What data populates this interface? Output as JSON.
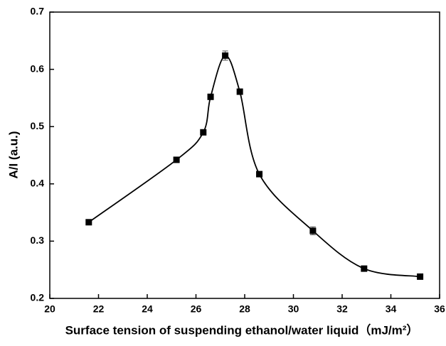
{
  "chart_data": {
    "type": "line",
    "xlabel": "Surface tension of suspending ethanol/water liquid（mJ/m²）",
    "ylabel": "A/I (a.u.)",
    "x": [
      21.6,
      25.2,
      26.3,
      26.6,
      27.2,
      27.8,
      28.6,
      30.8,
      32.9,
      35.2
    ],
    "series": [
      {
        "name": "A/I",
        "color": "#000000",
        "values": [
          0.333,
          0.442,
          0.49,
          0.552,
          0.624,
          0.561,
          0.417,
          0.318,
          0.252,
          0.238
        ],
        "errors": [
          0.002,
          0.002,
          0.003,
          0.003,
          0.008,
          0.003,
          0.003,
          0.007,
          0.003,
          0.003
        ]
      }
    ],
    "xlim": [
      20,
      36
    ],
    "xticks": [
      20,
      22,
      24,
      26,
      28,
      30,
      32,
      34,
      36
    ],
    "ylim": [
      0.2,
      0.7
    ],
    "yticks": [
      0.2,
      0.3,
      0.4,
      0.5,
      0.6,
      0.7
    ],
    "grid": false
  }
}
